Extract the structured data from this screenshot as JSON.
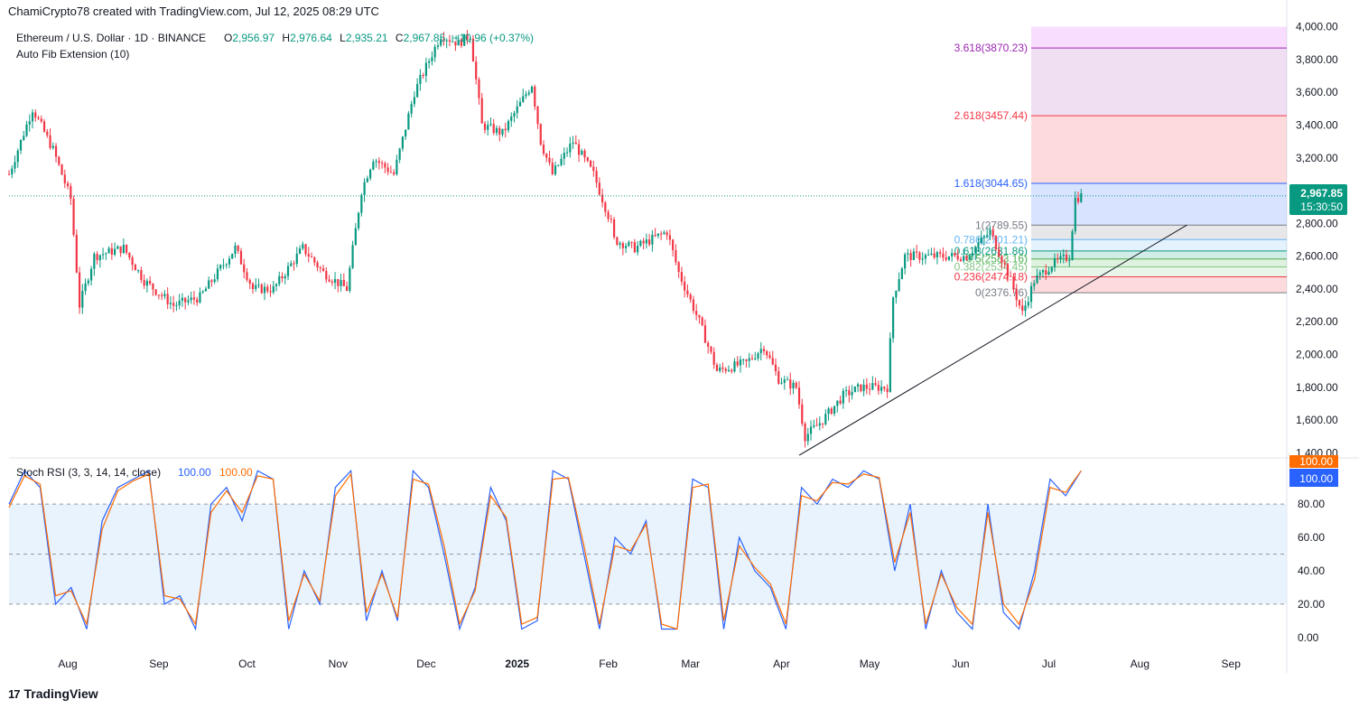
{
  "header": {
    "created_by": "ChamiCrypto78 created with TradingView.com, Jul 12, 2025 08:29 UTC",
    "symbol": "Ethereum / U.S. Dollar · 1D · BINANCE",
    "ohlc": {
      "o_label": "O",
      "o": "2,956.97",
      "h_label": "H",
      "h": "2,976.64",
      "l_label": "L",
      "l": "2,935.21",
      "c_label": "C",
      "c": "2,967.85",
      "change": "+10.96 (+0.37%)"
    },
    "indicator": "Auto Fib Extension (10)"
  },
  "price_badge": {
    "price": "2,967.85",
    "countdown": "15:30:50"
  },
  "colors": {
    "up": "#089981",
    "down": "#f23645",
    "k_line": "#2962ff",
    "d_line": "#ff6d00",
    "rsi_band": "#e3f0fc",
    "badge": "#089981"
  },
  "chart_data": [
    {
      "type": "candlestick",
      "title": "Ethereum / U.S. Dollar · 1D · BINANCE",
      "y_ticks": [
        "4,000.00",
        "3,800.00",
        "3,600.00",
        "3,400.00",
        "3,200.00",
        "3,000.00",
        "2,800.00",
        "2,600.00",
        "2,400.00",
        "2,200.00",
        "2,000.00",
        "1,800.00",
        "1,600.00",
        "1,400.00"
      ],
      "ylim": [
        1380,
        4020
      ],
      "x_ticks": [
        "Aug",
        "Sep",
        "Oct",
        "Nov",
        "Dec",
        "2025",
        "Feb",
        "Mar",
        "Apr",
        "May",
        "Jun",
        "Jul",
        "Aug",
        "Sep"
      ],
      "x_tick_dates": [
        "2024-08-01",
        "2024-09-01",
        "2024-10-01",
        "2024-11-01",
        "2024-12-01",
        "2025-01-01",
        "2025-02-01",
        "2025-03-01",
        "2025-04-01",
        "2025-05-01",
        "2025-06-01",
        "2025-07-01",
        "2025-08-01",
        "2025-09-01"
      ],
      "xlim": [
        "2024-07-12",
        "2025-09-20"
      ],
      "close_path": [
        [
          "2024-07-12",
          3100
        ],
        [
          "2024-07-20",
          3500
        ],
        [
          "2024-07-27",
          3250
        ],
        [
          "2024-08-02",
          2950
        ],
        [
          "2024-08-05",
          2300
        ],
        [
          "2024-08-10",
          2600
        ],
        [
          "2024-08-20",
          2650
        ],
        [
          "2024-08-27",
          2450
        ],
        [
          "2024-09-06",
          2300
        ],
        [
          "2024-09-15",
          2350
        ],
        [
          "2024-09-27",
          2650
        ],
        [
          "2024-10-03",
          2400
        ],
        [
          "2024-10-10",
          2400
        ],
        [
          "2024-10-20",
          2650
        ],
        [
          "2024-10-27",
          2500
        ],
        [
          "2024-11-04",
          2400
        ],
        [
          "2024-11-09",
          3000
        ],
        [
          "2024-11-13",
          3200
        ],
        [
          "2024-11-20",
          3100
        ],
        [
          "2024-11-27",
          3600
        ],
        [
          "2024-12-06",
          3950
        ],
        [
          "2024-12-12",
          3900
        ],
        [
          "2024-12-16",
          3950
        ],
        [
          "2024-12-20",
          3400
        ],
        [
          "2024-12-27",
          3350
        ],
        [
          "2025-01-06",
          3650
        ],
        [
          "2025-01-09",
          3300
        ],
        [
          "2025-01-13",
          3100
        ],
        [
          "2025-01-20",
          3300
        ],
        [
          "2025-01-27",
          3100
        ],
        [
          "2025-02-02",
          2800
        ],
        [
          "2025-02-03",
          2700
        ],
        [
          "2025-02-10",
          2650
        ],
        [
          "2025-02-21",
          2750
        ],
        [
          "2025-02-25",
          2500
        ],
        [
          "2025-03-04",
          2200
        ],
        [
          "2025-03-10",
          1900
        ],
        [
          "2025-03-20",
          1950
        ],
        [
          "2025-03-26",
          2050
        ],
        [
          "2025-03-31",
          1850
        ],
        [
          "2025-04-06",
          1800
        ],
        [
          "2025-04-09",
          1500
        ],
        [
          "2025-04-15",
          1600
        ],
        [
          "2025-04-22",
          1750
        ],
        [
          "2025-04-28",
          1800
        ],
        [
          "2025-05-07",
          1800
        ],
        [
          "2025-05-09",
          2350
        ],
        [
          "2025-05-13",
          2600
        ],
        [
          "2025-05-25",
          2600
        ],
        [
          "2025-06-03",
          2600
        ],
        [
          "2025-06-11",
          2750
        ],
        [
          "2025-06-17",
          2500
        ],
        [
          "2025-06-22",
          2250
        ],
        [
          "2025-06-26",
          2450
        ],
        [
          "2025-07-02",
          2550
        ],
        [
          "2025-07-08",
          2600
        ],
        [
          "2025-07-10",
          2950
        ],
        [
          "2025-07-12",
          2967.85
        ]
      ],
      "last_price": 2967.85,
      "fib_levels": [
        {
          "ratio": "3.618",
          "price": 3870.23,
          "label": "3.618(3870.23)",
          "color": "#9c27b0"
        },
        {
          "ratio": "2.618",
          "price": 3457.44,
          "label": "2.618(3457.44)",
          "color": "#f23645"
        },
        {
          "ratio": "1.618",
          "price": 3044.65,
          "label": "1.618(3044.65)",
          "color": "#2962ff"
        },
        {
          "ratio": "1",
          "price": 2789.55,
          "label": "1(2789.55)",
          "color": "#787b86"
        },
        {
          "ratio": "0.786",
          "price": 2701.21,
          "label": "0.786(2701.21)",
          "color": "#64b5f6"
        },
        {
          "ratio": "0.618",
          "price": 2631.86,
          "label": "0.618(2631.86)",
          "color": "#089981"
        },
        {
          "ratio": "0.5",
          "price": 2583.16,
          "label": "0.5(2583.16)",
          "color": "#4caf50"
        },
        {
          "ratio": "0.382",
          "price": 2534.45,
          "label": "0.382(2534.45)",
          "color": "#81c784"
        },
        {
          "ratio": "0.236",
          "price": 2474.18,
          "label": "0.236(2474.18)",
          "color": "#f23645"
        },
        {
          "ratio": "0",
          "price": 2376.76,
          "label": "0(2376.76)",
          "color": "#787b86"
        }
      ],
      "trendline": [
        [
          "2025-04-07",
          1385
        ],
        [
          "2025-08-17",
          2790
        ]
      ]
    },
    {
      "type": "line",
      "title": "Stoch RSI (3, 3, 14, 14, close)",
      "k_value": "100.00",
      "d_value": "100.00",
      "y_ticks": [
        "80.00",
        "60.00",
        "40.00",
        "20.00",
        "0.00"
      ],
      "upper_label": "100.00",
      "band": [
        20,
        80
      ],
      "midline": 50,
      "ylim": [
        -5,
        105
      ],
      "series": [
        {
          "name": "K",
          "values": [
            80,
            100,
            90,
            20,
            30,
            5,
            70,
            90,
            95,
            100,
            20,
            25,
            5,
            80,
            90,
            70,
            100,
            95,
            5,
            40,
            20,
            90,
            100,
            10,
            40,
            10,
            100,
            90,
            50,
            5,
            30,
            90,
            70,
            5,
            10,
            100,
            95,
            50,
            5,
            60,
            50,
            70,
            5,
            5,
            95,
            90,
            5,
            60,
            40,
            30,
            5,
            90,
            80,
            95,
            90,
            100,
            95,
            40,
            80,
            5,
            40,
            15,
            5,
            80,
            15,
            5,
            40,
            95,
            85,
            100
          ]
        },
        {
          "name": "D",
          "values": [
            78,
            97,
            92,
            25,
            28,
            8,
            65,
            88,
            94,
            98,
            25,
            23,
            8,
            75,
            88,
            75,
            97,
            95,
            10,
            38,
            22,
            85,
            98,
            15,
            38,
            12,
            95,
            92,
            55,
            8,
            28,
            85,
            72,
            8,
            12,
            95,
            96,
            55,
            8,
            55,
            52,
            68,
            8,
            5,
            90,
            92,
            10,
            55,
            42,
            32,
            8,
            85,
            82,
            93,
            92,
            98,
            96,
            45,
            75,
            8,
            38,
            18,
            8,
            75,
            20,
            8,
            35,
            90,
            87,
            100
          ]
        }
      ]
    }
  ],
  "footer": {
    "brand": "TradingView"
  }
}
